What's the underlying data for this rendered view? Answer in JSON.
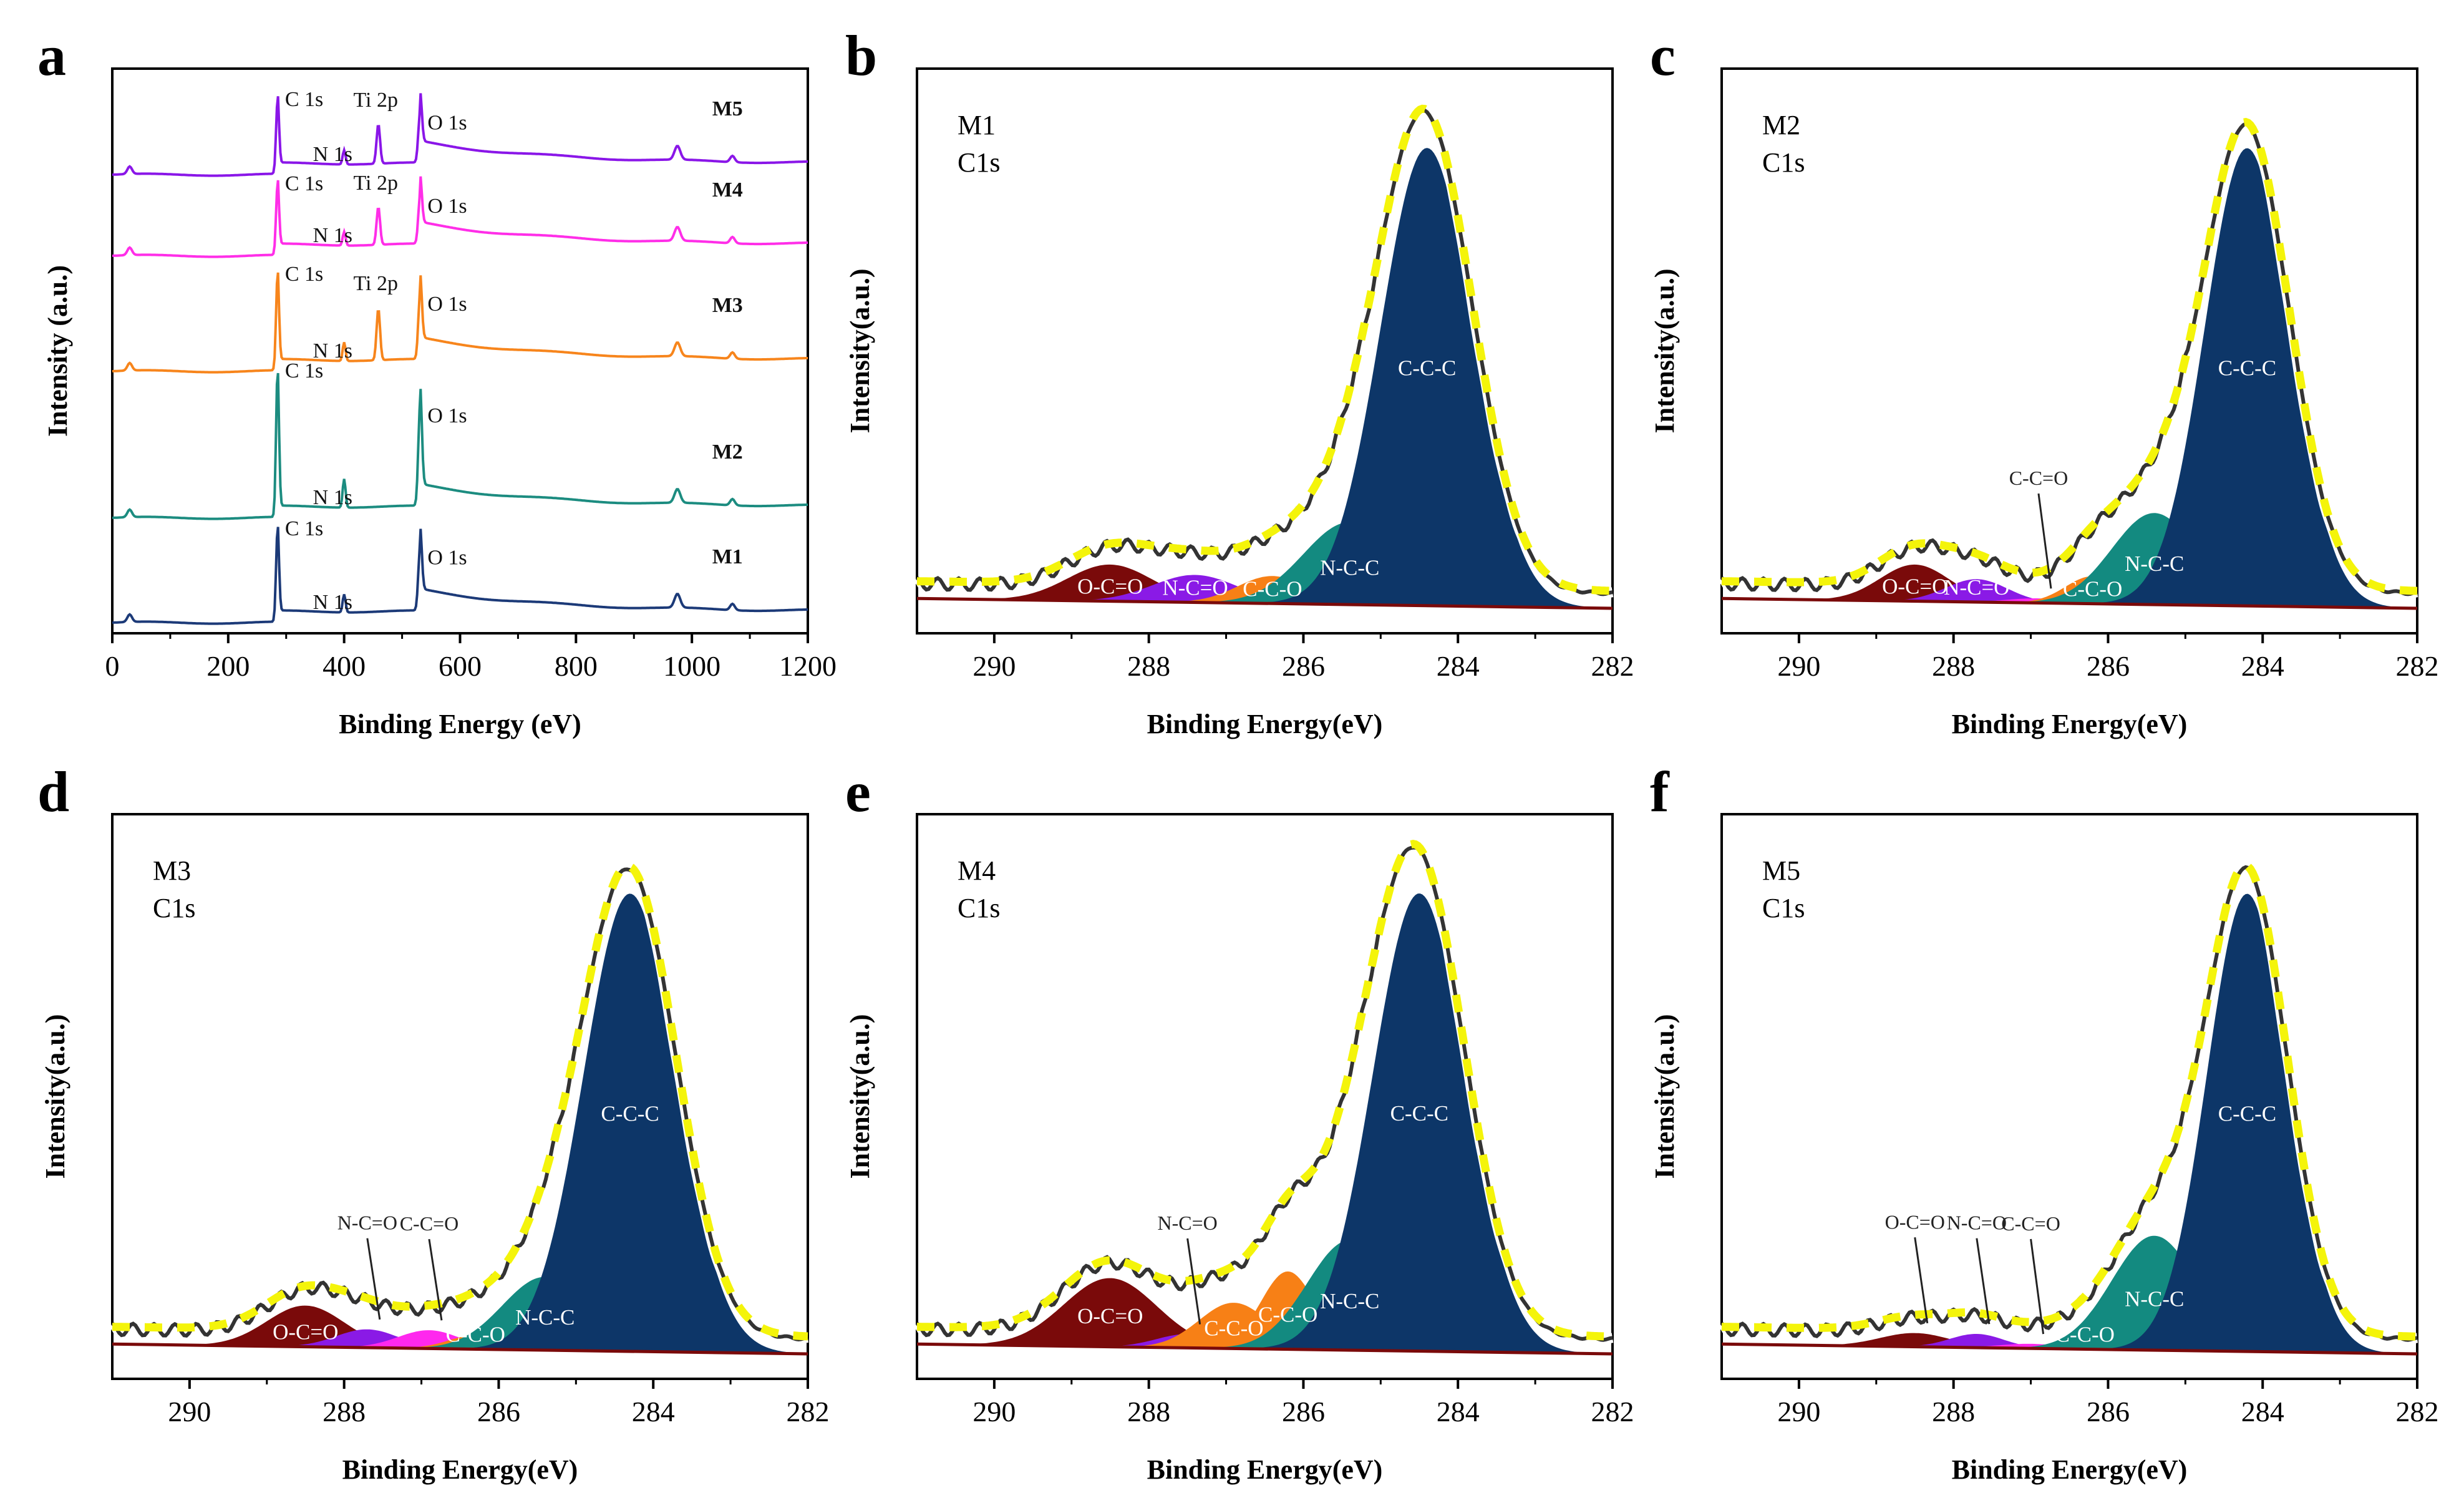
{
  "chart_data": [
    {
      "panel": "a",
      "type": "line",
      "xlabel": "Binding Energy (eV)",
      "ylabel": "Intensity (a.u.)",
      "xlim": [
        0,
        1200
      ],
      "xticks": [
        0,
        200,
        400,
        600,
        800,
        1000,
        1200
      ],
      "series": [
        {
          "name": "M5",
          "color": "#8a16e8",
          "labels": [
            "C 1s",
            "N 1s",
            "Ti 2p",
            "O 1s"
          ],
          "peaks": {
            "C 1s": 285,
            "N 1s": 400,
            "Ti 2p": 459,
            "O 1s": 531
          }
        },
        {
          "name": "M4",
          "color": "#ff2ee8",
          "labels": [
            "C 1s",
            "N 1s",
            "Ti 2p",
            "O 1s"
          ],
          "peaks": {
            "C 1s": 285,
            "N 1s": 400,
            "Ti 2p": 459,
            "O 1s": 531
          }
        },
        {
          "name": "M3",
          "color": "#f7851c",
          "labels": [
            "C 1s",
            "N 1s",
            "Ti 2p",
            "O 1s"
          ],
          "peaks": {
            "C 1s": 285,
            "N 1s": 400,
            "Ti 2p": 459,
            "O 1s": 531
          }
        },
        {
          "name": "M2",
          "color": "#1c8c80",
          "labels": [
            "C 1s",
            "N 1s",
            "O 1s"
          ],
          "peaks": {
            "C 1s": 285,
            "N 1s": 400,
            "O 1s": 531
          }
        },
        {
          "name": "M1",
          "color": "#1c3a78",
          "labels": [
            "C 1s",
            "N 1s",
            "O 1s"
          ],
          "peaks": {
            "C 1s": 285,
            "N 1s": 400,
            "O 1s": 531
          }
        }
      ]
    },
    {
      "panel": "b",
      "type": "area",
      "sample": "M1",
      "core": "C1s",
      "xlabel": "Binding Energy(eV)",
      "ylabel": "Intensity(a.u.)",
      "xlim": [
        291,
        282
      ],
      "xticks": [
        290,
        288,
        286,
        284,
        282
      ],
      "components": [
        {
          "name": "O-C=O",
          "center": 288.5,
          "height": 0.08,
          "width": 0.55
        },
        {
          "name": "N-C=O",
          "center": 287.4,
          "height": 0.06,
          "width": 0.55
        },
        {
          "name": "C-C-O",
          "center": 286.4,
          "height": 0.06,
          "width": 0.45
        },
        {
          "name": "N-C-C",
          "center": 285.4,
          "height": 0.18,
          "width": 0.6
        },
        {
          "name": "C-C-C",
          "center": 284.4,
          "height": 1.0,
          "width": 0.6
        }
      ]
    },
    {
      "panel": "c",
      "type": "area",
      "sample": "M2",
      "core": "C1s",
      "xlabel": "Binding Energy(eV)",
      "ylabel": "Intensity(a.u.)",
      "xlim": [
        291,
        282
      ],
      "xticks": [
        290,
        288,
        286,
        284,
        282
      ],
      "callouts": [
        "C-C=O"
      ],
      "components": [
        {
          "name": "O-C=O",
          "center": 288.5,
          "height": 0.08,
          "width": 0.45
        },
        {
          "name": "N-C=O",
          "center": 287.7,
          "height": 0.05,
          "width": 0.4
        },
        {
          "name": "C-C=O",
          "center": 286.9,
          "height": 0.01,
          "width": 0.4
        },
        {
          "name": "C-C-O",
          "center": 286.2,
          "height": 0.06,
          "width": 0.35
        },
        {
          "name": "N-C-C",
          "center": 285.4,
          "height": 0.2,
          "width": 0.55
        },
        {
          "name": "C-C-C",
          "center": 284.2,
          "height": 1.0,
          "width": 0.55
        }
      ]
    },
    {
      "panel": "d",
      "type": "area",
      "sample": "M3",
      "core": "C1s",
      "xlabel": "Binding Energy(eV)",
      "ylabel": "Intensity(a.u.)",
      "xlim": [
        291,
        282
      ],
      "xticks": [
        290,
        288,
        286,
        284,
        282
      ],
      "callouts": [
        "N-C=O",
        "C-C=O"
      ],
      "components": [
        {
          "name": "O-C=O",
          "center": 288.5,
          "height": 0.09,
          "width": 0.5
        },
        {
          "name": "N-C=O",
          "center": 287.7,
          "height": 0.04,
          "width": 0.4
        },
        {
          "name": "C-C=O",
          "center": 286.9,
          "height": 0.04,
          "width": 0.4
        },
        {
          "name": "C-C-O",
          "center": 286.3,
          "height": 0.03,
          "width": 0.35
        },
        {
          "name": "N-C-C",
          "center": 285.4,
          "height": 0.16,
          "width": 0.55
        },
        {
          "name": "C-C-C",
          "center": 284.3,
          "height": 1.0,
          "width": 0.6
        }
      ]
    },
    {
      "panel": "e",
      "type": "area",
      "sample": "M4",
      "core": "C1s",
      "xlabel": "Binding Energy(eV)",
      "ylabel": "Intensity(a.u.)",
      "xlim": [
        291,
        282
      ],
      "xticks": [
        290,
        288,
        286,
        284,
        282
      ],
      "callouts": [
        "N-C=O"
      ],
      "components": [
        {
          "name": "O-C=O",
          "center": 288.5,
          "height": 0.15,
          "width": 0.6
        },
        {
          "name": "N-C=O",
          "center": 287.5,
          "height": 0.03,
          "width": 0.4
        },
        {
          "name": "C-C-O",
          "center": 286.9,
          "height": 0.1,
          "width": 0.45
        },
        {
          "name": "C-C-O",
          "center": 286.2,
          "height": 0.17,
          "width": 0.35
        },
        {
          "name": "N-C-C",
          "center": 285.4,
          "height": 0.24,
          "width": 0.55
        },
        {
          "name": "C-C-C",
          "center": 284.5,
          "height": 1.0,
          "width": 0.6
        }
      ]
    },
    {
      "panel": "f",
      "type": "area",
      "sample": "M5",
      "core": "C1s",
      "xlabel": "Binding Energy(eV)",
      "ylabel": "Intensity(a.u.)",
      "xlim": [
        291,
        282
      ],
      "xticks": [
        290,
        288,
        286,
        284,
        282
      ],
      "callouts": [
        "O-C=O",
        "N-C=O",
        "C-C=O"
      ],
      "components": [
        {
          "name": "O-C=O",
          "center": 288.5,
          "height": 0.03,
          "width": 0.45
        },
        {
          "name": "N-C=O",
          "center": 287.7,
          "height": 0.03,
          "width": 0.35
        },
        {
          "name": "C-C=O",
          "center": 287.0,
          "height": 0.01,
          "width": 0.4
        },
        {
          "name": "C-C-O",
          "center": 286.3,
          "height": 0.01,
          "width": 0.4
        },
        {
          "name": "N-C-C",
          "center": 285.4,
          "height": 0.25,
          "width": 0.55
        },
        {
          "name": "C-C-C",
          "center": 284.2,
          "height": 1.0,
          "width": 0.52
        }
      ]
    }
  ],
  "component_colors": {
    "O-C=O": "#7a0a0a",
    "N-C=O": "#8a1ae6",
    "C-C=O": "#ff28ee",
    "C-C-O": "#f78016",
    "N-C-C": "#138a80",
    "C-C-C": "#0d3668",
    "envelope": "#333333",
    "fit": "#f4f40a"
  }
}
